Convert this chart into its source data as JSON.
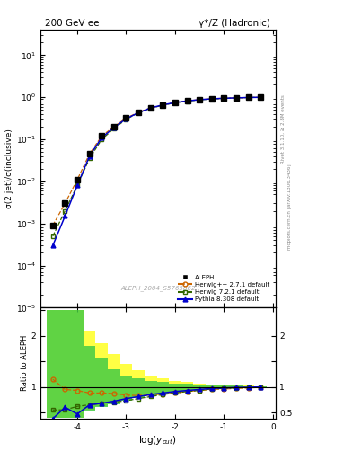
{
  "title_left": "200 GeV ee",
  "title_right": "γ*/Z (Hadronic)",
  "ylabel_main": "σ(2 jet)/σ(inclusive)",
  "ylabel_ratio": "Ratio to ALEPH",
  "xlabel": "log(y_{cut})",
  "right_label_top": "Rivet 3.1.10, ≥ 2.8M events",
  "right_label_bottom": "mcplots.cern.ch [arXiv:1306.3436]",
  "watermark": "ALEPH_2004_S5765862",
  "log_ycut": [
    -4.5,
    -4.25,
    -4.0,
    -3.75,
    -3.5,
    -3.25,
    -3.0,
    -2.75,
    -2.5,
    -2.25,
    -2.0,
    -1.75,
    -1.5,
    -1.25,
    -1.0,
    -0.75,
    -0.5,
    -0.25
  ],
  "aleph_y": [
    0.0009,
    0.003,
    0.011,
    0.045,
    0.12,
    0.2,
    0.32,
    0.44,
    0.56,
    0.66,
    0.75,
    0.82,
    0.88,
    0.92,
    0.95,
    0.97,
    0.99,
    1.0
  ],
  "herwig_pp_y": [
    0.0009,
    0.003,
    0.011,
    0.045,
    0.12,
    0.2,
    0.32,
    0.44,
    0.56,
    0.66,
    0.75,
    0.82,
    0.88,
    0.92,
    0.95,
    0.97,
    0.99,
    1.0
  ],
  "herwig_y": [
    0.0005,
    0.002,
    0.008,
    0.035,
    0.1,
    0.18,
    0.3,
    0.43,
    0.55,
    0.65,
    0.74,
    0.81,
    0.87,
    0.91,
    0.94,
    0.97,
    0.99,
    1.0
  ],
  "pythia_y": [
    0.0003,
    0.0015,
    0.008,
    0.04,
    0.11,
    0.19,
    0.31,
    0.43,
    0.56,
    0.66,
    0.75,
    0.82,
    0.88,
    0.92,
    0.95,
    0.97,
    0.99,
    1.0
  ],
  "herwig_pp_ratio": [
    1.15,
    0.95,
    0.93,
    0.88,
    0.88,
    0.87,
    0.84,
    0.83,
    0.84,
    0.86,
    0.88,
    0.91,
    0.93,
    0.95,
    0.96,
    0.97,
    0.98,
    0.99
  ],
  "herwig_ratio": [
    0.55,
    0.55,
    0.62,
    0.65,
    0.68,
    0.7,
    0.73,
    0.77,
    0.81,
    0.85,
    0.88,
    0.91,
    0.93,
    0.96,
    0.97,
    0.98,
    0.99,
    1.0
  ],
  "pythia_ratio": [
    0.38,
    0.6,
    0.47,
    0.65,
    0.68,
    0.72,
    0.77,
    0.81,
    0.85,
    0.88,
    0.91,
    0.93,
    0.95,
    0.97,
    0.98,
    0.99,
    0.99,
    1.0
  ],
  "yellow_band_x": [
    -4.5,
    -4.25,
    -4.0,
    -3.75,
    -3.5,
    -3.25,
    -3.0,
    -2.75,
    -2.5,
    -2.25,
    -2.0,
    -1.75,
    -1.5,
    -1.25,
    -1.0,
    -0.75,
    -0.5,
    -0.25
  ],
  "yellow_band_lo": [
    0.4,
    0.4,
    0.4,
    0.55,
    0.62,
    0.68,
    0.75,
    0.8,
    0.84,
    0.87,
    0.9,
    0.92,
    0.94,
    0.95,
    0.96,
    0.97,
    0.98,
    0.99
  ],
  "yellow_band_hi": [
    2.5,
    2.5,
    2.5,
    2.1,
    1.85,
    1.65,
    1.45,
    1.32,
    1.22,
    1.16,
    1.12,
    1.09,
    1.07,
    1.05,
    1.04,
    1.03,
    1.02,
    1.01
  ],
  "green_band_lo": [
    0.4,
    0.4,
    0.4,
    0.52,
    0.6,
    0.66,
    0.73,
    0.78,
    0.83,
    0.86,
    0.89,
    0.91,
    0.93,
    0.95,
    0.96,
    0.97,
    0.98,
    0.99
  ],
  "green_band_hi": [
    2.5,
    2.5,
    2.5,
    1.8,
    1.55,
    1.35,
    1.22,
    1.16,
    1.12,
    1.09,
    1.07,
    1.06,
    1.05,
    1.04,
    1.03,
    1.02,
    1.01,
    1.01
  ],
  "color_aleph": "#000000",
  "color_herwig_pp": "#cc6600",
  "color_herwig": "#336600",
  "color_pythia": "#0000cc",
  "color_yellow": "#ffff44",
  "color_green": "#44cc44",
  "xlim": [
    -4.75,
    0.05
  ],
  "ylim_main": [
    1e-05,
    40
  ],
  "ylim_ratio": [
    0.38,
    2.55
  ]
}
